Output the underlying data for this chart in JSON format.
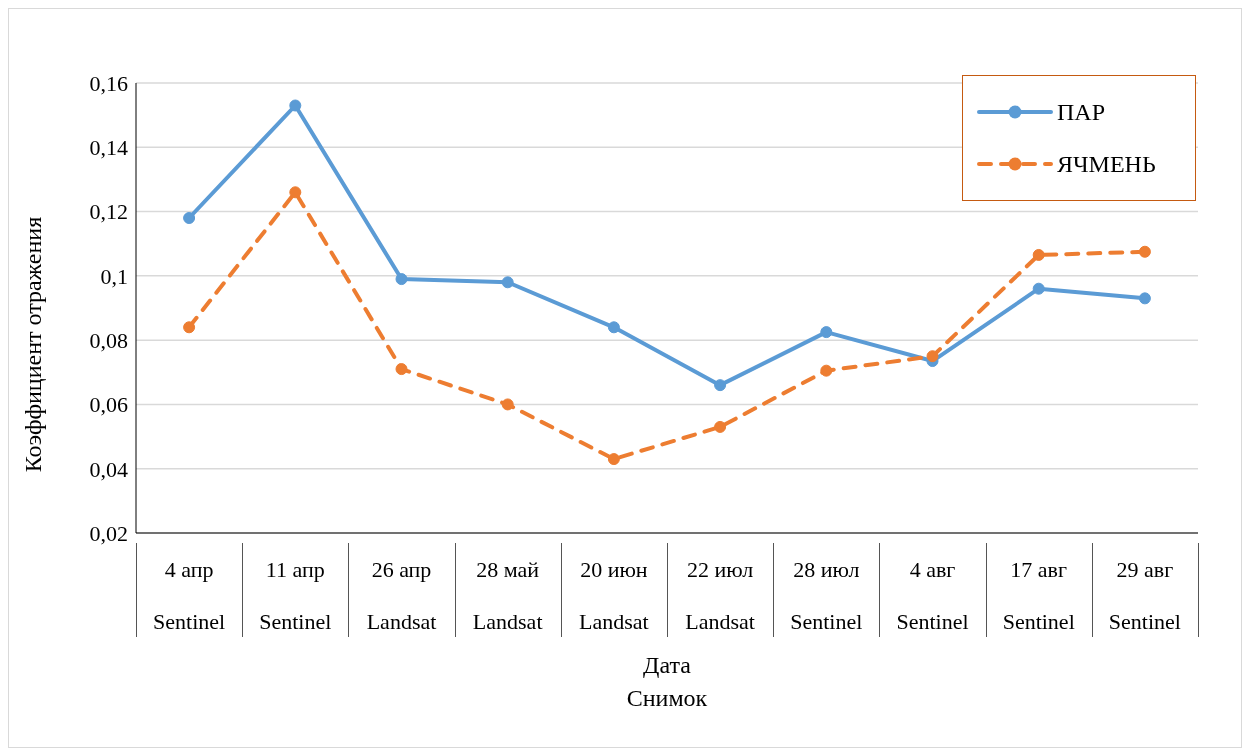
{
  "chart_data": {
    "type": "line",
    "xlabel": "Дата\nСнимок",
    "ylabel": "Коэффициент отражения",
    "categories": [
      "4 апр\nSentinel",
      "11 апр\nSentinel",
      "26 апр\nLandsat",
      "28 май\nLandsat",
      "20 июн\nLandsat",
      "22 июл\nLandsat",
      "28 июл\nSentinel",
      "4 авг\nSentinel",
      "17 авг\nSentinel",
      "29 авг\nSentinel"
    ],
    "series": [
      {
        "name": "ПАР",
        "color": "#5b9bd5",
        "line_style": "solid",
        "values": [
          0.118,
          0.153,
          0.099,
          0.098,
          0.084,
          0.066,
          0.0825,
          0.0735,
          0.096,
          0.093
        ]
      },
      {
        "name": "ЯЧМЕНЬ",
        "color": "#ed7d31",
        "line_style": "dashed",
        "values": [
          0.084,
          0.126,
          0.071,
          0.06,
          0.043,
          0.053,
          0.0705,
          0.075,
          0.1065,
          0.1075
        ]
      }
    ],
    "ylim": [
      0.02,
      0.16
    ],
    "yticks": [
      {
        "value": 0.02,
        "label": "0,02"
      },
      {
        "value": 0.04,
        "label": "0,04"
      },
      {
        "value": 0.06,
        "label": "0,06"
      },
      {
        "value": 0.08,
        "label": "0,08"
      },
      {
        "value": 0.1,
        "label": "0,1"
      },
      {
        "value": 0.12,
        "label": "0,12"
      },
      {
        "value": 0.14,
        "label": "0,14"
      },
      {
        "value": 0.16,
        "label": "0,16"
      }
    ],
    "grid": "y",
    "legend": "top right",
    "marker": "circle"
  }
}
